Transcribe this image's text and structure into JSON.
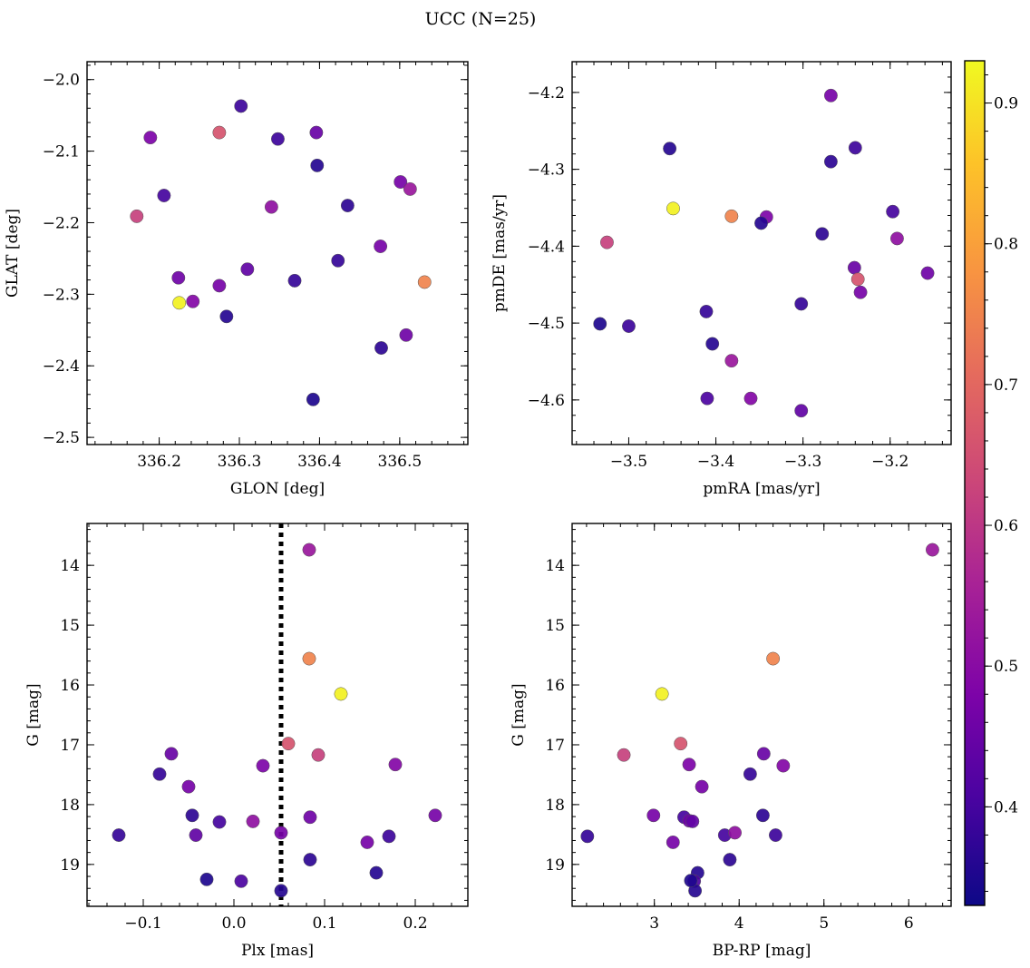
{
  "figure": {
    "title": "UCC (N=25)"
  },
  "colorscale": {
    "name": "plasma",
    "range": [
      0.33,
      0.93
    ],
    "ticks": [
      "0.4",
      "0.5",
      "0.6",
      "0.7",
      "0.8",
      "0.9"
    ],
    "tick_values": [
      0.4,
      0.5,
      0.6,
      0.7,
      0.8,
      0.9
    ],
    "stops": [
      [
        0.0,
        "#0d0887"
      ],
      [
        0.13,
        "#4b03a1"
      ],
      [
        0.25,
        "#7d03a8"
      ],
      [
        0.38,
        "#a82296"
      ],
      [
        0.5,
        "#cb4679"
      ],
      [
        0.63,
        "#e56b5d"
      ],
      [
        0.75,
        "#f89441"
      ],
      [
        0.88,
        "#fdc328"
      ],
      [
        1.0,
        "#f0f921"
      ]
    ]
  },
  "chart_data": [
    {
      "type": "scatter",
      "title": "",
      "xlabel": "GLON [deg]",
      "ylabel": "GLAT [deg]",
      "xlim": [
        336.11,
        336.585
      ],
      "ylim": [
        -2.51,
        -1.975
      ],
      "y_inverted": false,
      "xticks": [
        "336.2",
        "336.3",
        "336.4",
        "336.5"
      ],
      "xtick_values": [
        336.2,
        336.3,
        336.4,
        336.5
      ],
      "yticks": [
        "−2.0",
        "−2.1",
        "−2.2",
        "−2.3",
        "−2.4",
        "−2.5"
      ],
      "ytick_values": [
        -2.0,
        -2.1,
        -2.2,
        -2.3,
        -2.4,
        -2.5
      ],
      "points": [
        {
          "x": 336.302,
          "y": -2.037,
          "c": 0.39
        },
        {
          "x": 336.189,
          "y": -2.081,
          "c": 0.48
        },
        {
          "x": 336.275,
          "y": -2.074,
          "c": 0.66
        },
        {
          "x": 336.348,
          "y": -2.083,
          "c": 0.39
        },
        {
          "x": 336.396,
          "y": -2.074,
          "c": 0.45
        },
        {
          "x": 336.397,
          "y": -2.12,
          "c": 0.36
        },
        {
          "x": 336.206,
          "y": -2.162,
          "c": 0.4
        },
        {
          "x": 336.501,
          "y": -2.143,
          "c": 0.47
        },
        {
          "x": 336.513,
          "y": -2.153,
          "c": 0.53
        },
        {
          "x": 336.34,
          "y": -2.178,
          "c": 0.51
        },
        {
          "x": 336.435,
          "y": -2.176,
          "c": 0.37
        },
        {
          "x": 336.172,
          "y": -2.191,
          "c": 0.62
        },
        {
          "x": 336.476,
          "y": -2.233,
          "c": 0.47
        },
        {
          "x": 336.423,
          "y": -2.253,
          "c": 0.38
        },
        {
          "x": 336.31,
          "y": -2.265,
          "c": 0.44
        },
        {
          "x": 336.224,
          "y": -2.277,
          "c": 0.46
        },
        {
          "x": 336.369,
          "y": -2.281,
          "c": 0.38
        },
        {
          "x": 336.531,
          "y": -2.283,
          "c": 0.75
        },
        {
          "x": 336.275,
          "y": -2.288,
          "c": 0.47
        },
        {
          "x": 336.225,
          "y": -2.312,
          "c": 0.92
        },
        {
          "x": 336.242,
          "y": -2.31,
          "c": 0.49
        },
        {
          "x": 336.284,
          "y": -2.331,
          "c": 0.36
        },
        {
          "x": 336.508,
          "y": -2.357,
          "c": 0.46
        },
        {
          "x": 336.477,
          "y": -2.375,
          "c": 0.37
        },
        {
          "x": 336.392,
          "y": -2.447,
          "c": 0.35
        }
      ]
    },
    {
      "type": "scatter",
      "title": "",
      "xlabel": "pmRA [mas/yr]",
      "ylabel": "pmDE [mas/yr]",
      "xlim": [
        -3.565,
        -3.13
      ],
      "ylim": [
        -4.658,
        -4.16
      ],
      "y_inverted": false,
      "xticks": [
        "−3.5",
        "−3.4",
        "−3.3",
        "−3.2"
      ],
      "xtick_values": [
        -3.5,
        -3.4,
        -3.3,
        -3.2
      ],
      "yticks": [
        "−4.2",
        "−4.3",
        "−4.4",
        "−4.5",
        "−4.6"
      ],
      "ytick_values": [
        -4.2,
        -4.3,
        -4.4,
        -4.5,
        -4.6
      ],
      "points": [
        {
          "x": -3.268,
          "y": -4.204,
          "c": 0.47
        },
        {
          "x": -3.453,
          "y": -4.273,
          "c": 0.36
        },
        {
          "x": -3.24,
          "y": -4.272,
          "c": 0.39
        },
        {
          "x": -3.268,
          "y": -4.29,
          "c": 0.37
        },
        {
          "x": -3.449,
          "y": -4.351,
          "c": 0.92
        },
        {
          "x": -3.382,
          "y": -4.361,
          "c": 0.75
        },
        {
          "x": -3.342,
          "y": -4.362,
          "c": 0.48
        },
        {
          "x": -3.348,
          "y": -4.37,
          "c": 0.36
        },
        {
          "x": -3.197,
          "y": -4.355,
          "c": 0.4
        },
        {
          "x": -3.278,
          "y": -4.384,
          "c": 0.37
        },
        {
          "x": -3.525,
          "y": -4.395,
          "c": 0.62
        },
        {
          "x": -3.192,
          "y": -4.39,
          "c": 0.51
        },
        {
          "x": -3.241,
          "y": -4.428,
          "c": 0.45
        },
        {
          "x": -3.237,
          "y": -4.443,
          "c": 0.66
        },
        {
          "x": -3.157,
          "y": -4.435,
          "c": 0.46
        },
        {
          "x": -3.234,
          "y": -4.46,
          "c": 0.47
        },
        {
          "x": -3.302,
          "y": -4.475,
          "c": 0.38
        },
        {
          "x": -3.411,
          "y": -4.485,
          "c": 0.38
        },
        {
          "x": -3.533,
          "y": -4.501,
          "c": 0.35
        },
        {
          "x": -3.5,
          "y": -4.504,
          "c": 0.39
        },
        {
          "x": -3.404,
          "y": -4.527,
          "c": 0.36
        },
        {
          "x": -3.382,
          "y": -4.549,
          "c": 0.53
        },
        {
          "x": -3.41,
          "y": -4.598,
          "c": 0.41
        },
        {
          "x": -3.36,
          "y": -4.598,
          "c": 0.49
        },
        {
          "x": -3.302,
          "y": -4.614,
          "c": 0.44
        }
      ]
    },
    {
      "type": "scatter",
      "title": "",
      "xlabel": "Plx [mas]",
      "ylabel": "G [mag]",
      "xlim": [
        -0.162,
        0.258
      ],
      "ylim": [
        19.7,
        13.3
      ],
      "y_inverted": true,
      "xticks": [
        "−0.1",
        "0.0",
        "0.1",
        "0.2"
      ],
      "xtick_values": [
        -0.1,
        0.0,
        0.1,
        0.2
      ],
      "yticks": [
        "14",
        "15",
        "16",
        "17",
        "18",
        "19"
      ],
      "ytick_values": [
        14,
        15,
        16,
        17,
        18,
        19
      ],
      "vline": {
        "x": 0.052,
        "style": "dotted"
      },
      "points": [
        {
          "x": 0.083,
          "y": 13.74,
          "c": 0.53
        },
        {
          "x": 0.083,
          "y": 15.56,
          "c": 0.75
        },
        {
          "x": 0.118,
          "y": 16.15,
          "c": 0.92
        },
        {
          "x": 0.06,
          "y": 16.98,
          "c": 0.66
        },
        {
          "x": -0.069,
          "y": 17.15,
          "c": 0.45
        },
        {
          "x": 0.093,
          "y": 17.17,
          "c": 0.62
        },
        {
          "x": 0.032,
          "y": 17.35,
          "c": 0.48
        },
        {
          "x": 0.178,
          "y": 17.33,
          "c": 0.49
        },
        {
          "x": -0.082,
          "y": 17.49,
          "c": 0.38
        },
        {
          "x": -0.05,
          "y": 17.7,
          "c": 0.47
        },
        {
          "x": -0.046,
          "y": 18.18,
          "c": 0.37
        },
        {
          "x": 0.084,
          "y": 18.21,
          "c": 0.46
        },
        {
          "x": 0.222,
          "y": 18.18,
          "c": 0.47
        },
        {
          "x": -0.016,
          "y": 18.29,
          "c": 0.4
        },
        {
          "x": 0.021,
          "y": 18.28,
          "c": 0.51
        },
        {
          "x": 0.052,
          "y": 18.47,
          "c": 0.47
        },
        {
          "x": -0.127,
          "y": 18.51,
          "c": 0.38
        },
        {
          "x": -0.042,
          "y": 18.51,
          "c": 0.44
        },
        {
          "x": 0.171,
          "y": 18.53,
          "c": 0.39
        },
        {
          "x": 0.147,
          "y": 18.63,
          "c": 0.47
        },
        {
          "x": 0.084,
          "y": 18.92,
          "c": 0.37
        },
        {
          "x": 0.157,
          "y": 19.14,
          "c": 0.36
        },
        {
          "x": -0.03,
          "y": 19.25,
          "c": 0.35
        },
        {
          "x": 0.008,
          "y": 19.28,
          "c": 0.41
        },
        {
          "x": 0.052,
          "y": 19.44,
          "c": 0.36
        }
      ]
    },
    {
      "type": "scatter",
      "title": "",
      "xlabel": "BP-RP [mag]",
      "ylabel": "G [mag]",
      "xlim": [
        2.03,
        6.5
      ],
      "ylim": [
        19.7,
        13.3
      ],
      "y_inverted": true,
      "xticks": [
        "3",
        "4",
        "5",
        "6"
      ],
      "xtick_values": [
        3,
        4,
        5,
        6
      ],
      "yticks": [
        "14",
        "15",
        "16",
        "17",
        "18",
        "19"
      ],
      "ytick_values": [
        14,
        15,
        16,
        17,
        18,
        19
      ],
      "points": [
        {
          "x": 6.28,
          "y": 13.74,
          "c": 0.53
        },
        {
          "x": 4.4,
          "y": 15.56,
          "c": 0.75
        },
        {
          "x": 3.09,
          "y": 16.15,
          "c": 0.92
        },
        {
          "x": 3.31,
          "y": 16.98,
          "c": 0.66
        },
        {
          "x": 2.64,
          "y": 17.17,
          "c": 0.62
        },
        {
          "x": 4.29,
          "y": 17.15,
          "c": 0.45
        },
        {
          "x": 3.41,
          "y": 17.33,
          "c": 0.48
        },
        {
          "x": 4.52,
          "y": 17.35,
          "c": 0.49
        },
        {
          "x": 4.13,
          "y": 17.49,
          "c": 0.38
        },
        {
          "x": 3.56,
          "y": 17.7,
          "c": 0.47
        },
        {
          "x": 2.99,
          "y": 18.18,
          "c": 0.47
        },
        {
          "x": 4.28,
          "y": 18.18,
          "c": 0.37
        },
        {
          "x": 3.35,
          "y": 18.21,
          "c": 0.4
        },
        {
          "x": 3.41,
          "y": 18.27,
          "c": 0.46
        },
        {
          "x": 3.45,
          "y": 18.28,
          "c": 0.44
        },
        {
          "x": 2.21,
          "y": 18.53,
          "c": 0.38
        },
        {
          "x": 3.83,
          "y": 18.51,
          "c": 0.4
        },
        {
          "x": 3.95,
          "y": 18.47,
          "c": 0.51
        },
        {
          "x": 4.43,
          "y": 18.51,
          "c": 0.39
        },
        {
          "x": 3.22,
          "y": 18.63,
          "c": 0.47
        },
        {
          "x": 3.89,
          "y": 18.92,
          "c": 0.37
        },
        {
          "x": 3.51,
          "y": 19.14,
          "c": 0.36
        },
        {
          "x": 3.47,
          "y": 19.28,
          "c": 0.41
        },
        {
          "x": 3.48,
          "y": 19.44,
          "c": 0.36
        },
        {
          "x": 3.43,
          "y": 19.27,
          "c": 0.35
        }
      ]
    }
  ]
}
